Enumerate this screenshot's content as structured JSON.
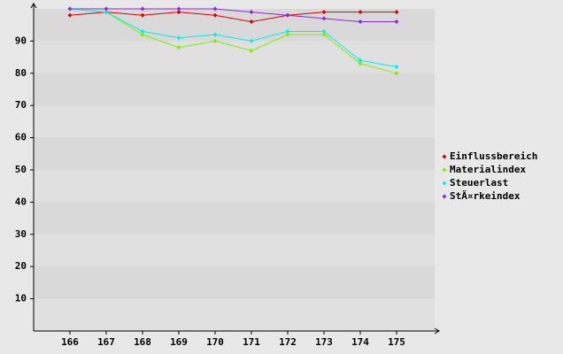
{
  "chart_data": {
    "type": "line",
    "categories": [
      "166",
      "167",
      "168",
      "169",
      "170",
      "171",
      "172",
      "173",
      "174",
      "175"
    ],
    "series": [
      {
        "name": "Einflussbereich",
        "color": "#e00000",
        "values": [
          98,
          99,
          98,
          99,
          98,
          96,
          98,
          99,
          99,
          99
        ]
      },
      {
        "name": "Materialindex",
        "color": "#80ee00",
        "values": [
          100,
          99,
          92,
          88,
          90,
          87,
          92,
          92,
          83,
          80
        ]
      },
      {
        "name": "Steuerlast",
        "color": "#00f0f0",
        "values": [
          100,
          99,
          93,
          91,
          92,
          90,
          93,
          93,
          84,
          82
        ]
      },
      {
        "name": "StÃ¤rkeindex",
        "color": "#8a2be2",
        "values": [
          100,
          100,
          100,
          100,
          100,
          99,
          98,
          97,
          96,
          96
        ]
      }
    ],
    "ylim": [
      0,
      100
    ],
    "yticks": [
      10,
      20,
      30,
      40,
      50,
      60,
      70,
      80,
      90
    ],
    "grid": true,
    "legend": "right"
  }
}
